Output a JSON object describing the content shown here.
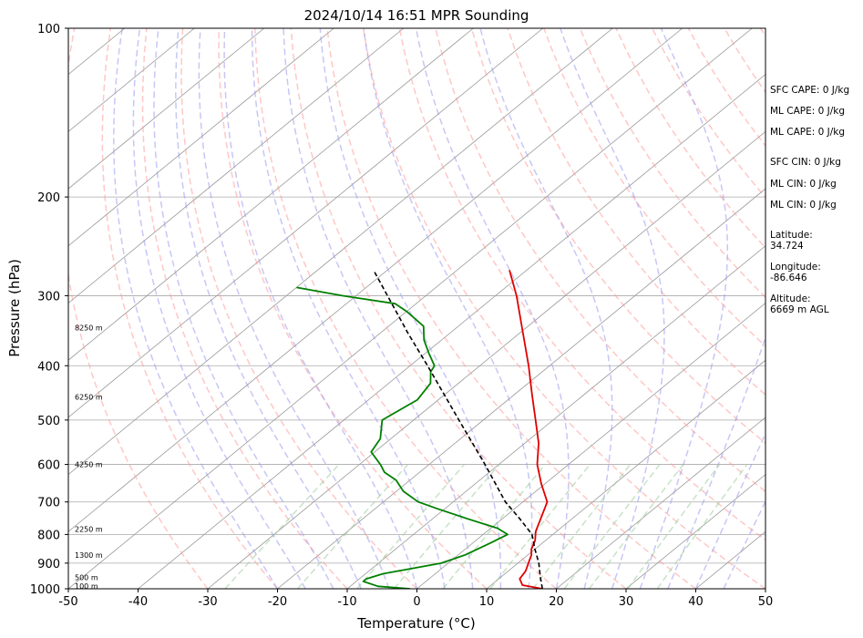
{
  "chart_data": {
    "type": "line",
    "title": "2024/10/14 16:51 MPR Sounding",
    "xlabel": "Temperature (°C)",
    "ylabel": "Pressure (hPa)",
    "xlim": [
      -50,
      50
    ],
    "ylim": [
      1000,
      100
    ],
    "y_scale": "log",
    "skew": "skew-T",
    "grid": true,
    "x_ticks": [
      "-50",
      "-40",
      "-30",
      "-20",
      "-10",
      "0",
      "10",
      "20",
      "30",
      "40",
      "50"
    ],
    "y_ticks": [
      "100",
      "200",
      "300",
      "400",
      "500",
      "600",
      "700",
      "800",
      "900",
      "1000"
    ],
    "series": [
      {
        "color": "#e00000",
        "style": "solid",
        "points": [
          {
            "p": 1000,
            "t": 18.0
          },
          {
            "p": 985,
            "t": 14.5
          },
          {
            "p": 960,
            "t": 13.0
          },
          {
            "p": 930,
            "t": 12.5
          },
          {
            "p": 900,
            "t": 11.5
          },
          {
            "p": 870,
            "t": 10.5
          },
          {
            "p": 850,
            "t": 9.5
          },
          {
            "p": 820,
            "t": 8.5
          },
          {
            "p": 790,
            "t": 7.0
          },
          {
            "p": 750,
            "t": 5.5
          },
          {
            "p": 700,
            "t": 3.5
          },
          {
            "p": 650,
            "t": -0.5
          },
          {
            "p": 600,
            "t": -4.5
          },
          {
            "p": 550,
            "t": -8.0
          },
          {
            "p": 500,
            "t": -12.5
          },
          {
            "p": 450,
            "t": -17.5
          },
          {
            "p": 400,
            "t": -23.0
          },
          {
            "p": 350,
            "t": -29.5
          },
          {
            "p": 300,
            "t": -37.0
          },
          {
            "p": 270,
            "t": -42.5
          }
        ]
      },
      {
        "color": "#008000",
        "style": "solid",
        "points": [
          {
            "p": 1000,
            "t": -1.0
          },
          {
            "p": 990,
            "t": -6.0
          },
          {
            "p": 970,
            "t": -9.0
          },
          {
            "p": 960,
            "t": -9.0
          },
          {
            "p": 940,
            "t": -7.5
          },
          {
            "p": 900,
            "t": -1.0
          },
          {
            "p": 870,
            "t": 1.0
          },
          {
            "p": 830,
            "t": 2.5
          },
          {
            "p": 800,
            "t": 3.5
          },
          {
            "p": 780,
            "t": 1.0
          },
          {
            "p": 750,
            "t": -5.0
          },
          {
            "p": 720,
            "t": -11.0
          },
          {
            "p": 700,
            "t": -15.0
          },
          {
            "p": 670,
            "t": -19.0
          },
          {
            "p": 640,
            "t": -22.0
          },
          {
            "p": 620,
            "t": -25.0
          },
          {
            "p": 600,
            "t": -27.0
          },
          {
            "p": 570,
            "t": -30.5
          },
          {
            "p": 540,
            "t": -31.5
          },
          {
            "p": 500,
            "t": -34.5
          },
          {
            "p": 460,
            "t": -33.0
          },
          {
            "p": 430,
            "t": -34.0
          },
          {
            "p": 410,
            "t": -36.0
          },
          {
            "p": 400,
            "t": -36.5
          },
          {
            "p": 380,
            "t": -39.5
          },
          {
            "p": 360,
            "t": -42.5
          },
          {
            "p": 340,
            "t": -45.0
          },
          {
            "p": 320,
            "t": -50.0
          },
          {
            "p": 310,
            "t": -53.0
          },
          {
            "p": 300,
            "t": -62.0
          },
          {
            "p": 290,
            "t": -70.0
          }
        ]
      },
      {
        "color": "#000000",
        "style": "dashed",
        "points": [
          {
            "p": 1000,
            "t": 18.0
          },
          {
            "p": 950,
            "t": 15.5
          },
          {
            "p": 900,
            "t": 13.0
          },
          {
            "p": 850,
            "t": 10.0
          },
          {
            "p": 800,
            "t": 7.0
          },
          {
            "p": 750,
            "t": 2.5
          },
          {
            "p": 700,
            "t": -2.5
          },
          {
            "p": 600,
            "t": -12.0
          },
          {
            "p": 500,
            "t": -23.5
          },
          {
            "p": 400,
            "t": -37.5
          },
          {
            "p": 350,
            "t": -46.0
          },
          {
            "p": 300,
            "t": -55.5
          },
          {
            "p": 270,
            "t": -62.0
          }
        ]
      }
    ],
    "height_labels": [
      {
        "p": 989,
        "label": "100 m"
      },
      {
        "p": 955,
        "label": "500 m"
      },
      {
        "p": 871,
        "label": "1300 m"
      },
      {
        "p": 783,
        "label": "2250 m"
      },
      {
        "p": 600,
        "label": "4250 m"
      },
      {
        "p": 455,
        "label": "6250 m"
      },
      {
        "p": 342,
        "label": "8250 m"
      }
    ],
    "side_info": [
      "SFC CAPE: 0 J/kg",
      "ML CAPE: 0 J/kg",
      "ML CAPE: 0 J/kg",
      "SFC CIN: 0 J/kg",
      "ML CIN: 0 J/kg",
      "ML CIN: 0 J/kg",
      "Latitude:",
      "34.724",
      "Longitude:",
      "-86.646",
      "Altitude:",
      "6669 m AGL"
    ],
    "colors": {
      "temperature": "#e00000",
      "dewpoint": "#008000",
      "parcel": "#000000",
      "dry_adiabat": "#ff9999",
      "moist_adiabat": "#9999ee",
      "mixing_ratio": "#99cc99",
      "isotherm": "#999999",
      "isobar": "#aaaaaa"
    }
  }
}
